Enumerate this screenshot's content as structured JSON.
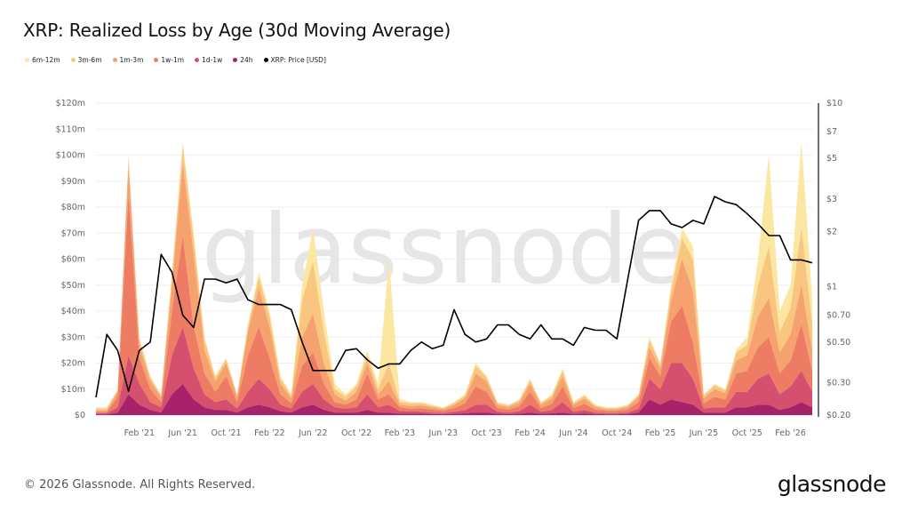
{
  "title": "XRP: Realized Loss by Age (30d Moving Average)",
  "footer": "© 2026 Glassnode. All Rights Reserved.",
  "logo": "glassnode",
  "watermark": "glassnode",
  "chart_data": {
    "type": "area",
    "stacked": true,
    "title": "XRP: Realized Loss by Age (30d Moving Average)",
    "legend_position": "top-left",
    "grid": true,
    "x": [
      "2020-10",
      "2020-11",
      "2020-12",
      "2021-01",
      "2021-02",
      "2021-03",
      "2021-04",
      "2021-05",
      "2021-06",
      "2021-07",
      "2021-08",
      "2021-09",
      "2021-10",
      "2021-11",
      "2021-12",
      "2022-01",
      "2022-02",
      "2022-03",
      "2022-04",
      "2022-05",
      "2022-06",
      "2022-07",
      "2022-08",
      "2022-09",
      "2022-10",
      "2022-11",
      "2022-12",
      "2023-01",
      "2023-02",
      "2023-03",
      "2023-04",
      "2023-05",
      "2023-06",
      "2023-07",
      "2023-08",
      "2023-09",
      "2023-10",
      "2023-11",
      "2023-12",
      "2024-01",
      "2024-02",
      "2024-03",
      "2024-04",
      "2024-05",
      "2024-06",
      "2024-07",
      "2024-08",
      "2024-09",
      "2024-10",
      "2024-11",
      "2024-12",
      "2025-01",
      "2025-02",
      "2025-03",
      "2025-04",
      "2025-05",
      "2025-06",
      "2025-07",
      "2025-08",
      "2025-09",
      "2025-10",
      "2025-11",
      "2025-12",
      "2026-01",
      "2026-02",
      "2026-03",
      "2026-04"
    ],
    "x_ticks": [
      {
        "label": "Feb '21",
        "x": "2021-02"
      },
      {
        "label": "Jun '21",
        "x": "2021-06"
      },
      {
        "label": "Oct '21",
        "x": "2021-10"
      },
      {
        "label": "Feb '22",
        "x": "2022-02"
      },
      {
        "label": "Jun '22",
        "x": "2022-06"
      },
      {
        "label": "Oct '22",
        "x": "2022-10"
      },
      {
        "label": "Feb '23",
        "x": "2023-02"
      },
      {
        "label": "Jun '23",
        "x": "2023-06"
      },
      {
        "label": "Oct '23",
        "x": "2023-10"
      },
      {
        "label": "Feb '24",
        "x": "2024-02"
      },
      {
        "label": "Jun '24",
        "x": "2024-06"
      },
      {
        "label": "Oct '24",
        "x": "2024-10"
      },
      {
        "label": "Feb '25",
        "x": "2025-02"
      },
      {
        "label": "Jun '25",
        "x": "2025-06"
      },
      {
        "label": "Oct '25",
        "x": "2025-10"
      },
      {
        "label": "Feb '26",
        "x": "2026-02"
      }
    ],
    "y_left": {
      "unit": "USD millions",
      "ylim": [
        0,
        120
      ],
      "ticks": [
        0,
        10,
        20,
        30,
        40,
        50,
        60,
        70,
        80,
        90,
        100,
        110,
        120
      ],
      "tick_labels": [
        "$0",
        "$10m",
        "$20m",
        "$30m",
        "$40m",
        "$50m",
        "$60m",
        "$70m",
        "$80m",
        "$90m",
        "$100m",
        "$110m",
        "$120m"
      ]
    },
    "y_right": {
      "scale": "log",
      "ylim": [
        0.2,
        10
      ],
      "ticks": [
        0.2,
        0.3,
        0.5,
        0.7,
        1,
        2,
        3,
        5,
        7,
        10
      ],
      "tick_labels": [
        "$0.20",
        "$0.30",
        "$0.50",
        "$0.70",
        "$1",
        "$2",
        "$3",
        "$5",
        "$7",
        "$10"
      ]
    },
    "series": [
      {
        "name": "24h",
        "color": "#a8226a",
        "values": [
          0.3,
          0.3,
          1,
          8,
          4,
          2,
          1,
          8,
          12,
          6,
          3,
          2,
          2,
          1,
          3,
          4,
          3,
          1.5,
          1,
          3,
          4,
          2,
          1,
          1,
          1,
          2,
          1,
          1,
          0.5,
          0.5,
          0.5,
          0.4,
          0.3,
          0.5,
          0.7,
          1,
          1,
          0.5,
          0.4,
          0.5,
          1,
          0.5,
          0.7,
          1,
          0.5,
          0.7,
          0.4,
          0.3,
          0.3,
          0.4,
          1,
          6,
          4,
          6,
          5,
          4,
          1,
          1,
          1,
          3,
          3,
          4,
          4,
          2,
          3,
          5,
          3
        ]
      },
      {
        "name": "1d-1w",
        "color": "#d4506e",
        "values": [
          0.5,
          0.5,
          2,
          15,
          8,
          3,
          2,
          15,
          22,
          12,
          5,
          3,
          4,
          1.5,
          6,
          10,
          7,
          2.5,
          1.5,
          6,
          8,
          4,
          2,
          1.5,
          2,
          6,
          2,
          3,
          1,
          1,
          0.8,
          0.6,
          0.5,
          0.8,
          1.2,
          3,
          3,
          0.8,
          0.6,
          1,
          3,
          0.8,
          1.2,
          4,
          0.8,
          1.2,
          0.6,
          0.5,
          0.5,
          0.6,
          1.5,
          8,
          6,
          14,
          15,
          10,
          1.5,
          2,
          2,
          6,
          6,
          10,
          12,
          6,
          8,
          12,
          6
        ]
      },
      {
        "name": "1w-1m",
        "color": "#ee7c64",
        "values": [
          0.5,
          0.5,
          4,
          62,
          10,
          5,
          2,
          17,
          35,
          16,
          8,
          4,
          9,
          2.5,
          14,
          20,
          12,
          4,
          2,
          10,
          12,
          6,
          2,
          1.5,
          3,
          8,
          3,
          4,
          1.5,
          1,
          1.3,
          1.1,
          0.8,
          1.4,
          2.6,
          7,
          5,
          1.4,
          1.1,
          1.8,
          5,
          1.4,
          2.5,
          6,
          1.4,
          2.5,
          1.1,
          0.8,
          0.8,
          1.1,
          2.5,
          8,
          5,
          16,
          22,
          14,
          2,
          4,
          3,
          7,
          8,
          12,
          14,
          8,
          10,
          18,
          8
        ]
      },
      {
        "name": "1m-3m",
        "color": "#f5a26f",
        "values": [
          0.5,
          0.5,
          2,
          11,
          5,
          3,
          2,
          10,
          28,
          28,
          9,
          4,
          5,
          2,
          9,
          15,
          12,
          4,
          2,
          11,
          15,
          8,
          3,
          1.5,
          3,
          4,
          2,
          5,
          1,
          1,
          1.1,
          0.9,
          0.7,
          1.2,
          2,
          5,
          4,
          1.2,
          1,
          1.5,
          3,
          1.2,
          2,
          4,
          1.2,
          2,
          1,
          0.7,
          0.7,
          1,
          2,
          4,
          3,
          8,
          18,
          20,
          2,
          3,
          2.5,
          5,
          6,
          12,
          15,
          8,
          10,
          15,
          8
        ]
      },
      {
        "name": "3m-6m",
        "color": "#f8c67e",
        "values": [
          0.7,
          0.7,
          0.5,
          3,
          2,
          1.5,
          0.5,
          4,
          6,
          6,
          4,
          1.5,
          1.5,
          0.7,
          2,
          4,
          4,
          2,
          1,
          14,
          20,
          12,
          2,
          1.5,
          2,
          3,
          2,
          7,
          1,
          1,
          0.8,
          0.6,
          0.4,
          0.7,
          1,
          3,
          1.5,
          0.7,
          0.6,
          0.8,
          1.5,
          0.7,
          1,
          2,
          0.7,
          1,
          0.6,
          0.4,
          0.4,
          0.6,
          0.7,
          3,
          1.5,
          4,
          8,
          12,
          1,
          1.5,
          1,
          3,
          4,
          12,
          20,
          8,
          10,
          22,
          10
        ]
      },
      {
        "name": "6m-12m",
        "color": "#fbe6a2",
        "values": [
          0.5,
          0.5,
          0.5,
          1,
          1,
          0.5,
          0.5,
          1,
          2,
          2,
          1,
          0.5,
          0.5,
          0.3,
          1,
          2,
          2,
          1,
          0.5,
          6,
          13,
          8,
          2,
          1,
          1,
          2,
          2,
          40,
          1,
          0.5,
          0.5,
          0.4,
          0.3,
          0.4,
          0.5,
          1,
          0.5,
          0.4,
          0.3,
          0.4,
          0.5,
          0.4,
          0.6,
          1,
          0.4,
          0.6,
          0.3,
          0.3,
          0.3,
          0.3,
          0.3,
          1,
          0.5,
          2,
          4,
          5,
          0.5,
          0.5,
          0.5,
          1,
          3,
          10,
          35,
          8,
          9,
          33,
          10
        ]
      }
    ],
    "price": {
      "name": "XRP: Price [USD]",
      "color": "#000000",
      "values": [
        0.25,
        0.55,
        0.45,
        0.27,
        0.45,
        0.5,
        1.5,
        1.2,
        0.7,
        0.6,
        1.1,
        1.1,
        1.05,
        1.1,
        0.85,
        0.8,
        0.8,
        0.8,
        0.75,
        0.5,
        0.35,
        0.35,
        0.35,
        0.45,
        0.46,
        0.4,
        0.36,
        0.38,
        0.38,
        0.45,
        0.5,
        0.46,
        0.48,
        0.75,
        0.55,
        0.5,
        0.52,
        0.62,
        0.62,
        0.55,
        0.52,
        0.62,
        0.52,
        0.52,
        0.48,
        0.6,
        0.58,
        0.58,
        0.52,
        1.1,
        2.3,
        2.6,
        2.6,
        2.2,
        2.1,
        2.3,
        2.2,
        3.1,
        2.9,
        2.8,
        2.5,
        2.2,
        1.9,
        1.9,
        1.4,
        1.4,
        1.35
      ]
    }
  }
}
